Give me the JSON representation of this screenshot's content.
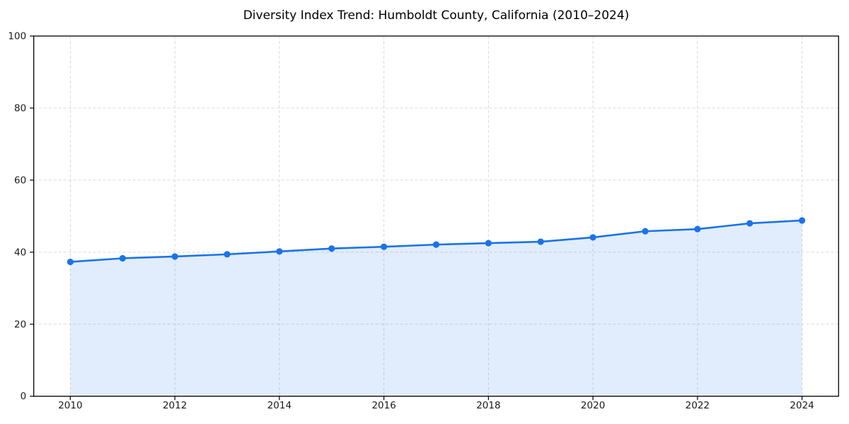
{
  "chart_data": {
    "type": "area",
    "title": "Diversity Index Trend: Humboldt County, California (2010–2024)",
    "x": [
      2010,
      2011,
      2012,
      2013,
      2014,
      2015,
      2016,
      2017,
      2018,
      2019,
      2020,
      2021,
      2022,
      2023,
      2024
    ],
    "series": [
      {
        "name": "Diversity Index",
        "values": [
          37.3,
          38.3,
          38.8,
          39.4,
          40.2,
          41.0,
          41.5,
          42.1,
          42.5,
          42.9,
          44.1,
          45.8,
          46.4,
          48.0,
          48.8
        ]
      }
    ],
    "xlabel": "",
    "ylabel": "",
    "xlim": [
      2009.3,
      2024.7
    ],
    "ylim": [
      0,
      100
    ],
    "xticks": [
      2010,
      2012,
      2014,
      2016,
      2018,
      2020,
      2022,
      2024
    ],
    "yticks": [
      0,
      20,
      40,
      60,
      80,
      100
    ],
    "grid": true,
    "grid_style": "dashed",
    "legend_position": "none",
    "colors": {
      "line": "#1a73e8",
      "marker": "#1a73e8",
      "fill": "#1a73e8",
      "fill_opacity": 0.13,
      "gridline": "#d9d9d9",
      "spine": "#000000",
      "tick": "#000000",
      "tick_label": "#1a1a1a",
      "background": "#ffffff"
    },
    "marker_radius": 4.6,
    "line_width": 2.6
  }
}
